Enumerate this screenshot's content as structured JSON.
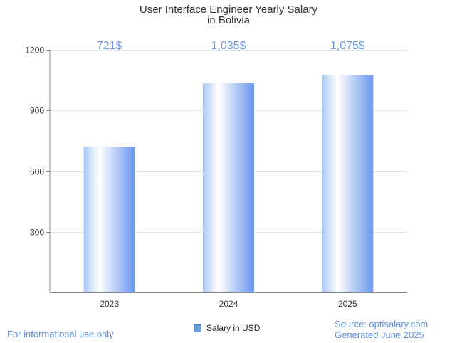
{
  "chart_data": {
    "type": "bar",
    "title_lines": [
      "User Interface Engineer Yearly Salary",
      "in Bolivia"
    ],
    "categories": [
      "2023",
      "2024",
      "2025"
    ],
    "series": [
      {
        "name": "Salary in USD",
        "values": [
          721,
          1035,
          1075
        ],
        "data_labels": [
          "721$",
          "1,035$",
          "1,075$"
        ]
      }
    ],
    "ylim": [
      0,
      1200
    ],
    "yticks": [
      300,
      600,
      900,
      1200
    ],
    "ytick_labels": [
      "300",
      "600",
      "900",
      "1200"
    ],
    "grid": true,
    "legend_position": "bottom-center",
    "bar_gradient": [
      "#a9c9f5",
      "#ffffff",
      "#6a97ee"
    ],
    "label_color": "#6d97e4"
  },
  "footer": {
    "left_note": "For informational use only",
    "source": "Source: optisalary.com",
    "generated": "Generated June 2025"
  }
}
